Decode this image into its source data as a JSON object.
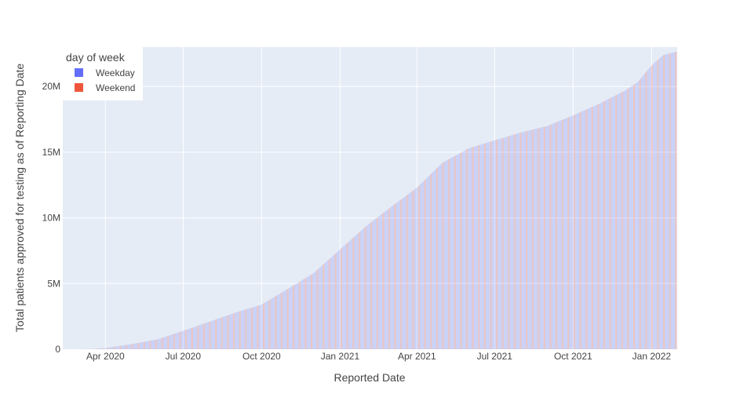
{
  "chart_data": {
    "type": "bar",
    "title": "",
    "xlabel": "Reported Date",
    "ylabel": "Total patients approved for testing as of Reporting Date",
    "x_range": [
      "2020-02-11",
      "2022-01-31"
    ],
    "ylim": [
      0,
      23000000
    ],
    "x_ticks": [
      "Apr 2020",
      "Jul 2020",
      "Oct 2020",
      "Jan 2021",
      "Apr 2021",
      "Jul 2021",
      "Oct 2021",
      "Jan 2022"
    ],
    "y_ticks": [
      "0",
      "5M",
      "10M",
      "15M",
      "20M"
    ],
    "grid": true,
    "legend": {
      "title": "day of week",
      "placement": "top-left"
    },
    "series": [
      {
        "name": "Weekday",
        "color": "#636efa"
      },
      {
        "name": "Weekend",
        "color": "#ef553b"
      }
    ],
    "cumulative_points": [
      {
        "x": "2020-02-28",
        "y": 0
      },
      {
        "x": "2020-03-15",
        "y": 20000
      },
      {
        "x": "2020-04-01",
        "y": 90000
      },
      {
        "x": "2020-05-01",
        "y": 380000
      },
      {
        "x": "2020-06-01",
        "y": 750000
      },
      {
        "x": "2020-07-01",
        "y": 1400000
      },
      {
        "x": "2020-08-01",
        "y": 2100000
      },
      {
        "x": "2020-09-01",
        "y": 2800000
      },
      {
        "x": "2020-10-01",
        "y": 3400000
      },
      {
        "x": "2020-11-01",
        "y": 4600000
      },
      {
        "x": "2020-12-01",
        "y": 5800000
      },
      {
        "x": "2021-01-01",
        "y": 7600000
      },
      {
        "x": "2021-02-01",
        "y": 9400000
      },
      {
        "x": "2021-03-01",
        "y": 10800000
      },
      {
        "x": "2021-04-01",
        "y": 12300000
      },
      {
        "x": "2021-05-01",
        "y": 14200000
      },
      {
        "x": "2021-06-01",
        "y": 15300000
      },
      {
        "x": "2021-07-01",
        "y": 15900000
      },
      {
        "x": "2021-08-01",
        "y": 16500000
      },
      {
        "x": "2021-09-01",
        "y": 17000000
      },
      {
        "x": "2021-10-01",
        "y": 17800000
      },
      {
        "x": "2021-11-01",
        "y": 18700000
      },
      {
        "x": "2021-12-01",
        "y": 19700000
      },
      {
        "x": "2021-12-15",
        "y": 20300000
      },
      {
        "x": "2022-01-01",
        "y": 21600000
      },
      {
        "x": "2022-01-15",
        "y": 22400000
      },
      {
        "x": "2022-01-30",
        "y": 22650000
      }
    ]
  }
}
